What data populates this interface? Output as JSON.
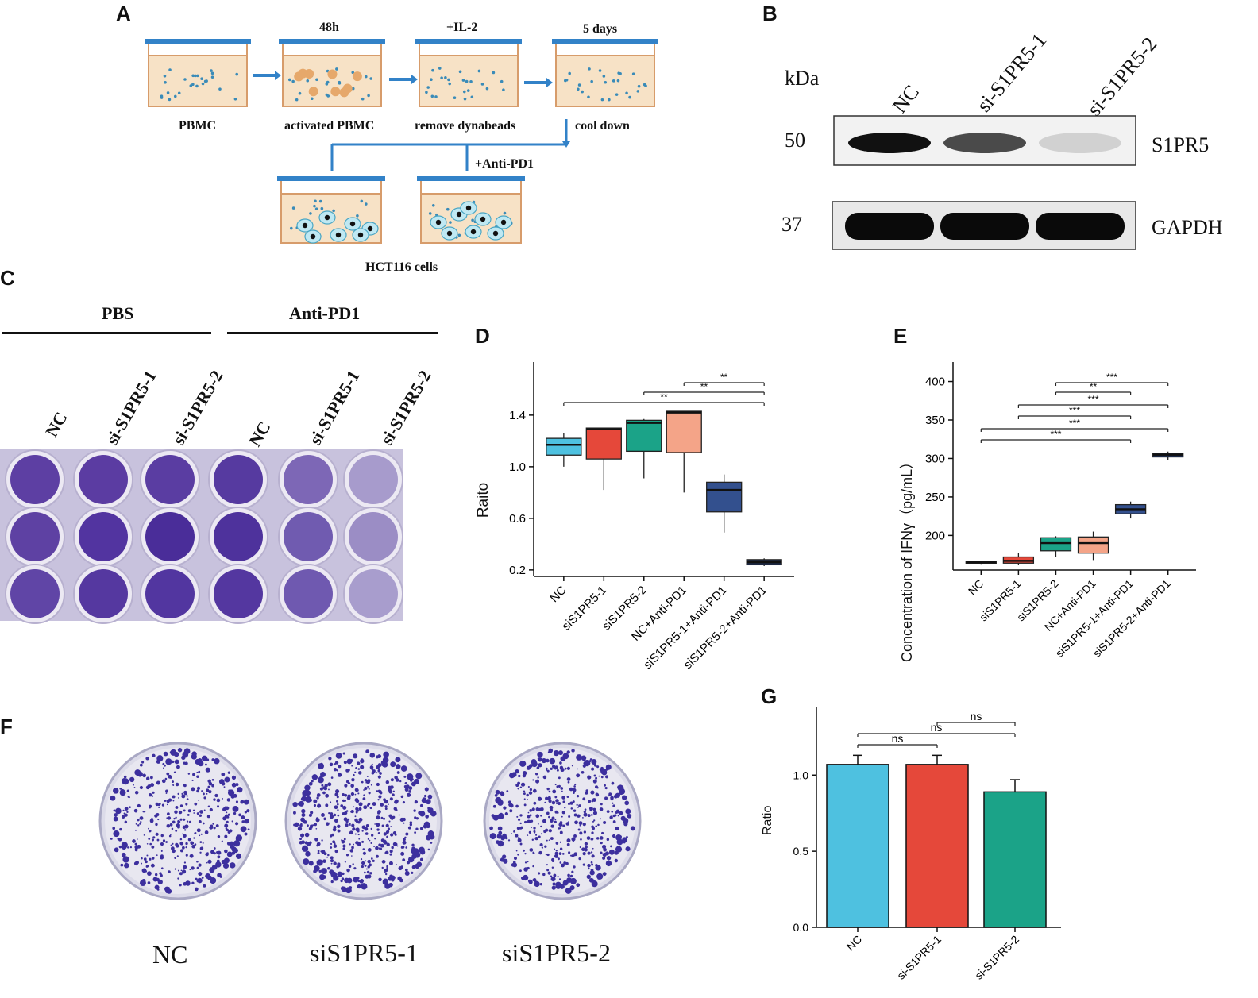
{
  "panel_labels": {
    "a": "A",
    "b": "B",
    "c": "C",
    "d": "D",
    "e": "E",
    "f": "F",
    "g": "G"
  },
  "panel_a": {
    "steps": [
      {
        "top": "",
        "bottom": "PBMC"
      },
      {
        "top": "48h",
        "bottom": "activated PBMC"
      },
      {
        "top": "+IL-2",
        "bottom": "remove dynabeads"
      },
      {
        "top": "5 days",
        "bottom": "cool down"
      }
    ],
    "anti_label": "+Anti-PD1",
    "cells_label": "HCT116 cells"
  },
  "panel_b": {
    "kda": "kDa",
    "lanes": [
      "NC",
      "si-S1PR5-1",
      "si-S1PR5-2"
    ],
    "markers": [
      "50",
      "37"
    ],
    "proteins": [
      "S1PR5",
      "GAPDH"
    ],
    "s1pr5_intensity": [
      1.0,
      0.75,
      0.15
    ],
    "gapdh_intensity": [
      1.0,
      1.0,
      1.0
    ]
  },
  "panel_c": {
    "groups": [
      "PBS",
      "Anti-PD1"
    ],
    "lanes": [
      "NC",
      "si-S1PR5-1",
      "si-S1PR5-2",
      "NC",
      "si-S1PR5-1",
      "si-S1PR5-2"
    ]
  },
  "chart_data": [
    {
      "type": "box",
      "panel": "D",
      "ylabel": "Raito",
      "categories": [
        "NC",
        "siS1PR5-1",
        "siS1PR5-2",
        "NC+Anti-PD1",
        "siS1PR5-1+Anti-PD1",
        "siS1PR5-2+Anti-PD1"
      ],
      "colors": [
        "#4ec1e0",
        "#e5483a",
        "#1ba388",
        "#f4a488",
        "#33508e",
        "#1c2c4e"
      ],
      "boxes": [
        {
          "min": 1.0,
          "q1": 1.09,
          "median": 1.17,
          "q3": 1.22,
          "max": 1.26
        },
        {
          "min": 0.82,
          "q1": 1.06,
          "median": 1.29,
          "q3": 1.3,
          "max": 1.3
        },
        {
          "min": 0.91,
          "q1": 1.12,
          "median": 1.34,
          "q3": 1.36,
          "max": 1.37
        },
        {
          "min": 0.8,
          "q1": 1.11,
          "median": 1.42,
          "q3": 1.43,
          "max": 1.43
        },
        {
          "min": 0.49,
          "q1": 0.65,
          "median": 0.82,
          "q3": 0.88,
          "max": 0.94
        },
        {
          "min": 0.23,
          "q1": 0.24,
          "median": 0.26,
          "q3": 0.28,
          "max": 0.29
        }
      ],
      "yticks": [
        0.2,
        0.6,
        1.0,
        1.4
      ],
      "ylim": [
        0.15,
        1.75
      ],
      "significance": [
        {
          "from": 3,
          "to": 5,
          "label": "**"
        },
        {
          "from": 2,
          "to": 5,
          "label": "**"
        },
        {
          "from": 0,
          "to": 5,
          "label": "**"
        }
      ]
    },
    {
      "type": "box",
      "panel": "E",
      "ylabel": "Concentration of IFNγ（pg/mL）",
      "categories": [
        "NC",
        "siS1PR5-1",
        "siS1PR5-2",
        "NC+Anti-PD1",
        "siS1PR5-1+Anti-PD1",
        "siS1PR5-2+Anti-PD1"
      ],
      "colors": [
        "#4ec1e0",
        "#e5483a",
        "#1ba388",
        "#f4a488",
        "#33508e",
        "#1c2c4e"
      ],
      "boxes": [
        {
          "min": 163,
          "q1": 164,
          "median": 165,
          "q3": 166,
          "max": 167
        },
        {
          "min": 162,
          "q1": 164,
          "median": 167,
          "q3": 172,
          "max": 177
        },
        {
          "min": 172,
          "q1": 180,
          "median": 190,
          "q3": 197,
          "max": 199
        },
        {
          "min": 168,
          "q1": 177,
          "median": 190,
          "q3": 198,
          "max": 205
        },
        {
          "min": 222,
          "q1": 228,
          "median": 234,
          "q3": 240,
          "max": 244
        },
        {
          "min": 298,
          "q1": 302,
          "median": 305,
          "q3": 307,
          "max": 309
        }
      ],
      "yticks": [
        200,
        250,
        300,
        350,
        400
      ],
      "ylim": [
        155,
        415
      ],
      "significance": [
        {
          "from": 2,
          "to": 5,
          "label": "***"
        },
        {
          "from": 2,
          "to": 4,
          "label": "**"
        },
        {
          "from": 1,
          "to": 5,
          "label": "***"
        },
        {
          "from": 1,
          "to": 4,
          "label": "***"
        },
        {
          "from": 0,
          "to": 5,
          "label": "***"
        },
        {
          "from": 0,
          "to": 4,
          "label": "***"
        }
      ]
    },
    {
      "type": "bar",
      "panel": "G",
      "ylabel": "Ratio",
      "categories": [
        "NC",
        "si-S1PR5-1",
        "si-S1PR5-2"
      ],
      "values": [
        1.07,
        1.07,
        0.89
      ],
      "errors": [
        0.06,
        0.06,
        0.08
      ],
      "colors": [
        "#4ec1e0",
        "#e5483a",
        "#1ba388"
      ],
      "yticks": [
        0.0,
        0.5,
        1.0
      ],
      "ylim": [
        0,
        1.45
      ],
      "significance": [
        {
          "from": 1,
          "to": 2,
          "label": "ns"
        },
        {
          "from": 0,
          "to": 2,
          "label": "ns"
        },
        {
          "from": 0,
          "to": 1,
          "label": "ns"
        }
      ]
    }
  ],
  "panel_f": {
    "plates": [
      "NC",
      "siS1PR5-1",
      "siS1PR5-2"
    ]
  }
}
